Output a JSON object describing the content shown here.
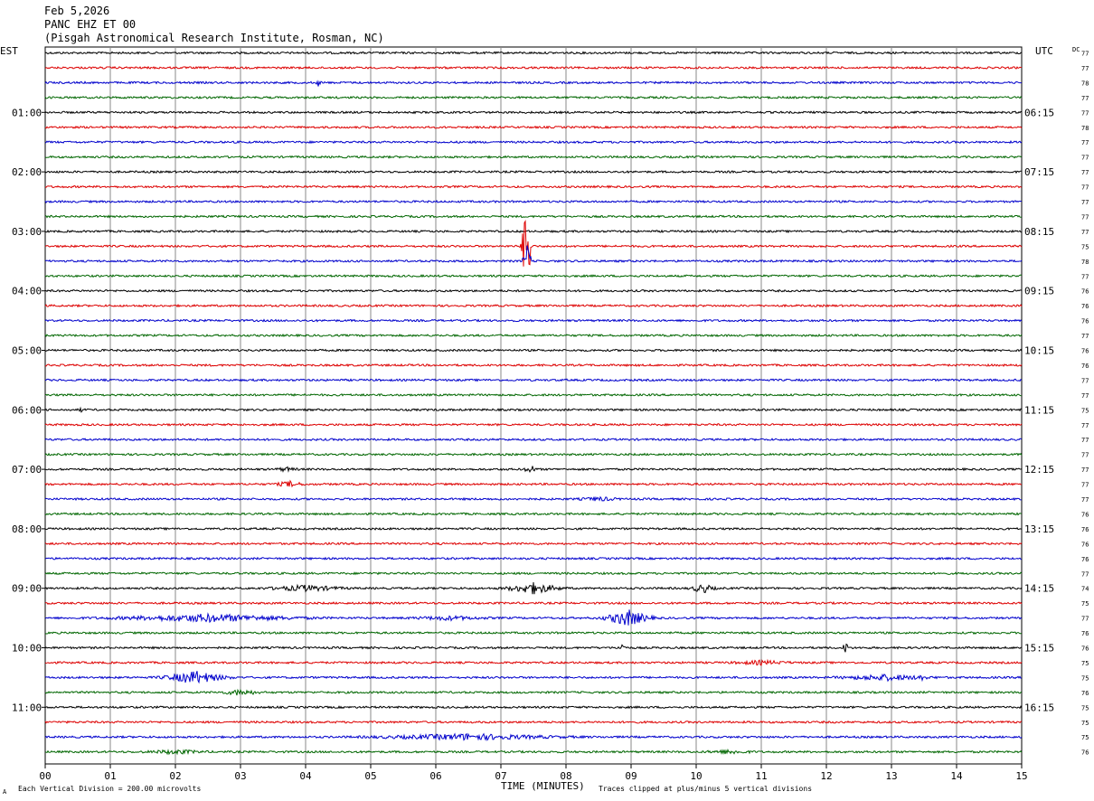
{
  "header": {
    "date": "Feb 5,2026",
    "station": "PANC EHZ ET 00",
    "location": "(Pisgah Astronomical Research Institute, Rosman, NC)"
  },
  "left_axis_label": "EST",
  "right_axis_label": "UTC",
  "dc_label": "DC",
  "footer": {
    "scale_note": "Each Vertical Division =  200.00 microvolts",
    "xlabel": "TIME (MINUTES)",
    "clip_note": "Traces clipped at plus/minus 5 vertical divisions",
    "corner_mark": "A"
  },
  "colors": {
    "trace_cycle": [
      "#000000",
      "#dd0000",
      "#0000cc",
      "#006600"
    ],
    "grid": "#888888"
  },
  "chart_data": {
    "type": "line",
    "xlabel": "TIME (MINUTES)",
    "xlim": [
      0,
      15
    ],
    "x_tick_labels": [
      "00",
      "01",
      "02",
      "03",
      "04",
      "05",
      "06",
      "07",
      "08",
      "09",
      "10",
      "11",
      "12",
      "13",
      "14",
      "15"
    ],
    "trace_minutes": 15,
    "traces_per_hour": 4,
    "left_hour_labels": [
      "01:00",
      "02:00",
      "03:00",
      "04:00",
      "05:00",
      "06:00",
      "07:00",
      "08:00",
      "09:00",
      "10:00",
      "11:00"
    ],
    "right_hour_labels": [
      "06:15",
      "07:15",
      "08:15",
      "09:15",
      "10:15",
      "11:15",
      "12:15",
      "13:15",
      "14:15",
      "15:15",
      "16:15"
    ],
    "first_labeled_row": 4,
    "dc_offsets": [
      77,
      77,
      78,
      77,
      77,
      78,
      77,
      77,
      77,
      77,
      77,
      77,
      77,
      75,
      78,
      77,
      76,
      76,
      76,
      77,
      76,
      76,
      77,
      77,
      75,
      77,
      77,
      77,
      77,
      77,
      77,
      76,
      76,
      76,
      76,
      77,
      74,
      75,
      77,
      76,
      76,
      75,
      75,
      76,
      75,
      75,
      75,
      76
    ],
    "events": [
      {
        "row": 2,
        "minute": 4.2,
        "amp": 4,
        "dur": 0.06
      },
      {
        "row": 13,
        "minute": 7.4,
        "amp": 60,
        "dur": 0.12,
        "clip": true
      },
      {
        "row": 14,
        "minute": 7.4,
        "amp": 22,
        "dur": 0.1
      },
      {
        "row": 24,
        "minute": 0.55,
        "amp": 3,
        "dur": 0.05
      },
      {
        "row": 28,
        "minute": 7.45,
        "amp": 5,
        "dur": 0.15
      },
      {
        "row": 28,
        "minute": 3.7,
        "amp": 2,
        "dur": 0.3
      },
      {
        "row": 29,
        "minute": 3.75,
        "amp": 3,
        "dur": 0.35
      },
      {
        "row": 30,
        "minute": 8.5,
        "amp": 2,
        "dur": 0.5
      },
      {
        "row": 36,
        "minute": 7.5,
        "amp": 6,
        "dur": 0.7
      },
      {
        "row": 36,
        "minute": 10.1,
        "amp": 5,
        "dur": 0.3
      },
      {
        "row": 36,
        "minute": 4.0,
        "amp": 3,
        "dur": 1.0
      },
      {
        "row": 38,
        "minute": 2.5,
        "amp": 4,
        "dur": 2.5
      },
      {
        "row": 38,
        "minute": 8.95,
        "amp": 9,
        "dur": 0.6
      },
      {
        "row": 38,
        "minute": 6.2,
        "amp": 2,
        "dur": 1.0
      },
      {
        "row": 40,
        "minute": 8.85,
        "amp": 5,
        "dur": 0.1
      },
      {
        "row": 40,
        "minute": 12.3,
        "amp": 6,
        "dur": 0.1
      },
      {
        "row": 41,
        "minute": 11.0,
        "amp": 2,
        "dur": 0.8
      },
      {
        "row": 42,
        "minute": 2.3,
        "amp": 7,
        "dur": 0.8
      },
      {
        "row": 42,
        "minute": 12.9,
        "amp": 3,
        "dur": 1.2
      },
      {
        "row": 42,
        "minute": 13.45,
        "amp": 12,
        "dur": 0.05
      },
      {
        "row": 43,
        "minute": 3.0,
        "amp": 3,
        "dur": 0.5
      },
      {
        "row": 46,
        "minute": 6.5,
        "amp": 3,
        "dur": 2.5
      },
      {
        "row": 47,
        "minute": 2.0,
        "amp": 2,
        "dur": 0.8
      },
      {
        "row": 47,
        "minute": 10.5,
        "amp": 2,
        "dur": 0.6
      }
    ]
  }
}
